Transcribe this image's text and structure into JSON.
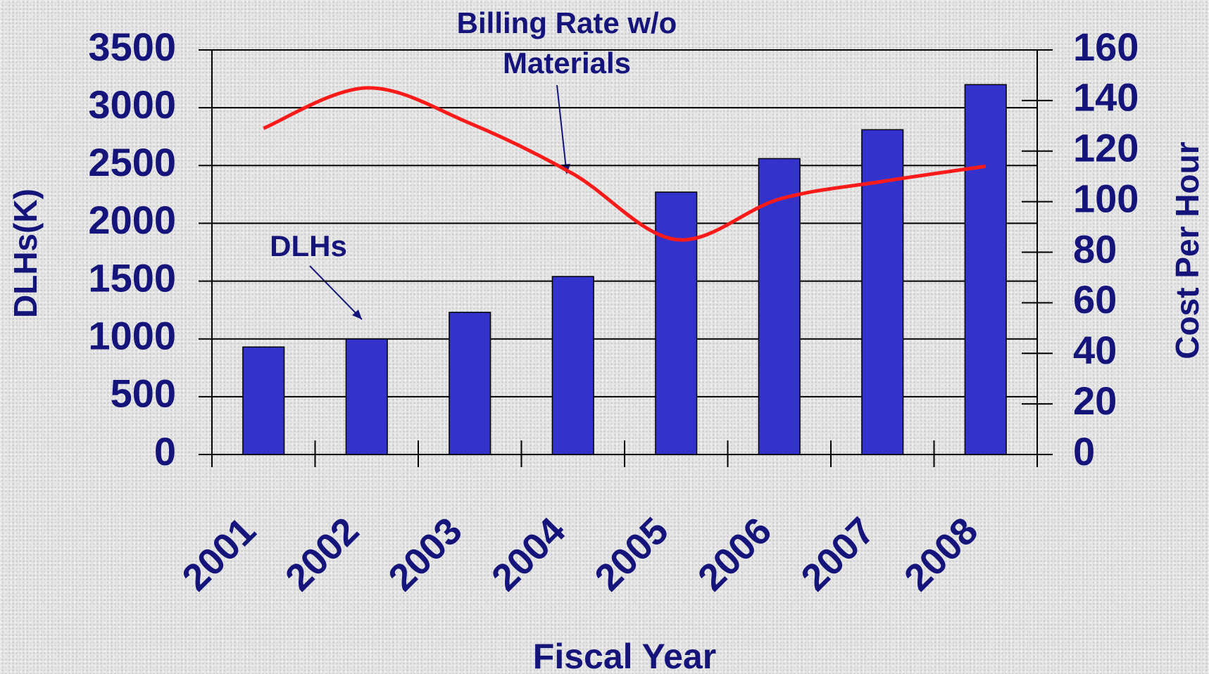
{
  "chart_data": {
    "type": "bar",
    "x_label": "Fiscal Year",
    "y_label": "DLHs(K)",
    "y2_label": "Cost Per Hour",
    "categories": [
      "2001",
      "2002",
      "2003",
      "2004",
      "2005",
      "2006",
      "2007",
      "2008"
    ],
    "series": [
      {
        "name": "DLHs",
        "type": "bar",
        "color": "#3333cc",
        "values": [
          930,
          1000,
          1230,
          1540,
          2270,
          2560,
          2810,
          3200
        ]
      },
      {
        "name": "Billing Rate w/o Materials",
        "type": "line",
        "axis": "y2",
        "color": "#ff1a1a",
        "values": [
          129,
          145,
          131,
          111,
          85,
          101,
          108,
          114
        ]
      }
    ],
    "ylim": [
      0,
      3500
    ],
    "yticks": [
      0,
      500,
      1000,
      1500,
      2000,
      2500,
      3000,
      3500
    ],
    "y2lim": [
      0,
      160
    ],
    "y2ticks": [
      0,
      20,
      40,
      60,
      80,
      100,
      120,
      140,
      160
    ],
    "grid": true
  }
}
